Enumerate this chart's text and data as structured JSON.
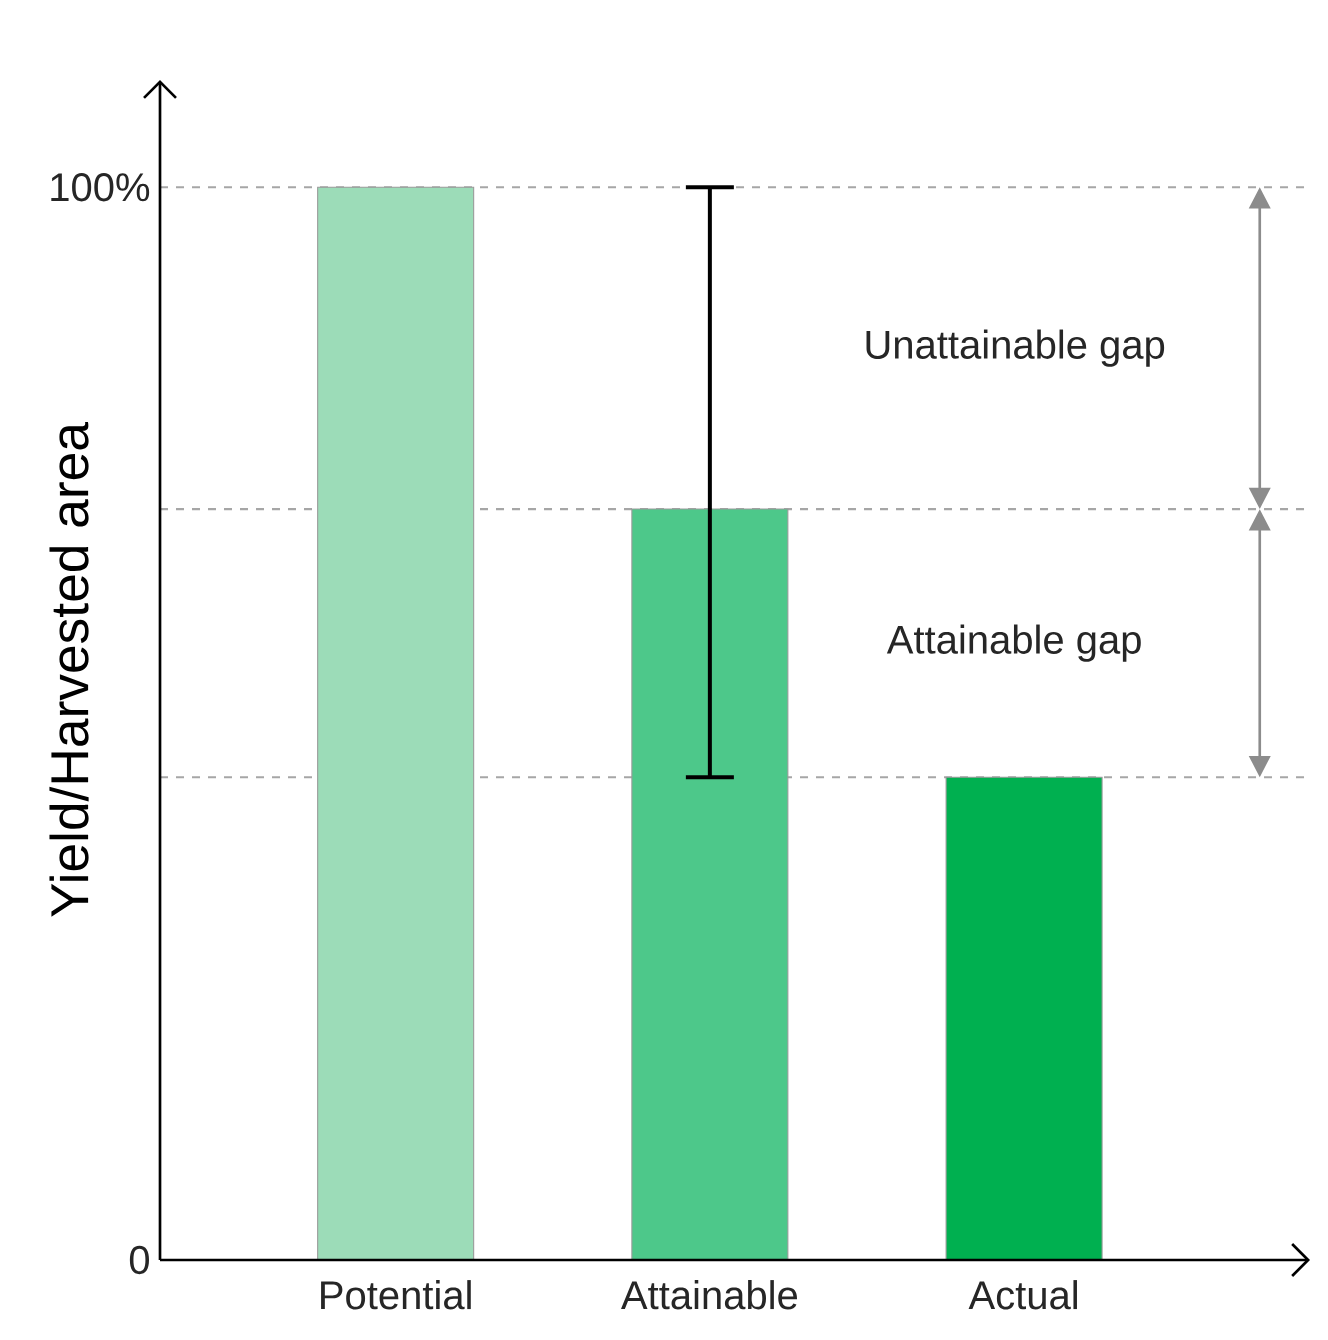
{
  "chart_data": {
    "type": "bar",
    "ylabel": "Yield/Harvested area",
    "categories": [
      "Potential",
      "Attainable",
      "Actual"
    ],
    "values": [
      100,
      70,
      45
    ],
    "colors": [
      "#9cdcb8",
      "#4dc88a",
      "#00b050"
    ],
    "errors": [
      null,
      [
        45,
        100
      ],
      null
    ],
    "ylim": [
      0,
      110
    ],
    "yticks": [
      0,
      {
        "value": 100,
        "label": "100%"
      }
    ],
    "ref_lines": [
      {
        "axis": "y",
        "value": 100,
        "color": "#a6a6a6",
        "line_style": "dashed"
      },
      {
        "axis": "y",
        "value": 70,
        "color": "#a6a6a6",
        "line_style": "dashed"
      },
      {
        "axis": "y",
        "value": 45,
        "color": "#a6a6a6",
        "line_style": "dashed"
      }
    ],
    "annotations": [
      "Unattainable gap",
      "Attainable gap"
    ]
  }
}
